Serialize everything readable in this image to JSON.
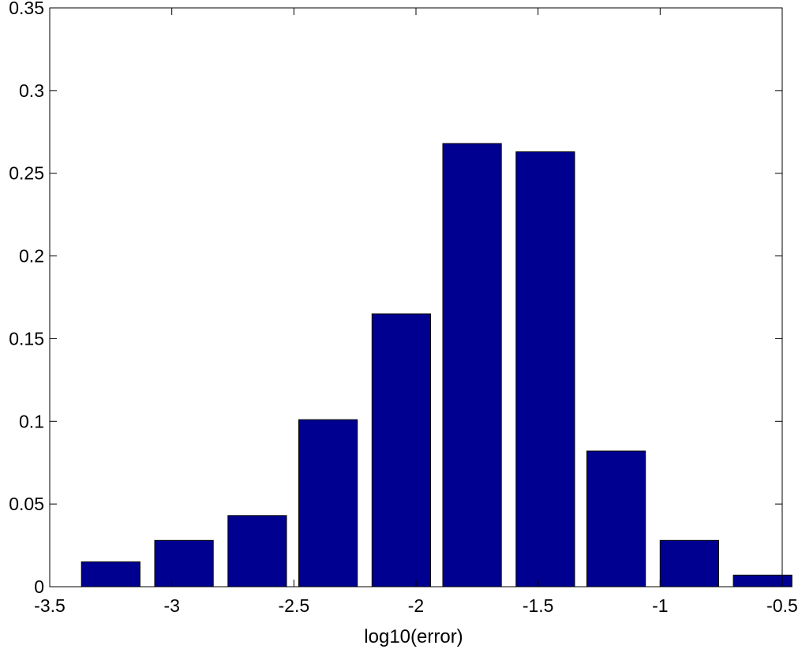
{
  "chart_data": {
    "type": "bar",
    "title": "",
    "xlabel": "log10(error)",
    "ylabel": "",
    "xlim": [
      -3.5,
      -0.5
    ],
    "ylim": [
      0,
      0.35
    ],
    "x": [
      -3.25,
      -2.95,
      -2.65,
      -2.36,
      -2.06,
      -1.77,
      -1.47,
      -1.18,
      -0.88,
      -0.58
    ],
    "values": [
      0.015,
      0.028,
      0.043,
      0.101,
      0.165,
      0.268,
      0.263,
      0.082,
      0.028,
      0.007
    ],
    "bar_width": 0.24,
    "xticks": [
      -3.5,
      -3,
      -2.5,
      -2,
      -1.5,
      -1,
      -0.5
    ],
    "xtick_labels": [
      "-3.5",
      "-3",
      "-2.5",
      "-2",
      "-1.5",
      "-1",
      "-0.5"
    ],
    "yticks": [
      0,
      0.05,
      0.1,
      0.15,
      0.2,
      0.25,
      0.3,
      0.35
    ],
    "ytick_labels": [
      "0",
      "0.05",
      "0.1",
      "0.15",
      "0.2",
      "0.25",
      "0.3",
      "0.35"
    ],
    "grid": false,
    "colors": {
      "bar": "#000090",
      "bar_edge": "#000000",
      "axis": "#000000"
    }
  }
}
